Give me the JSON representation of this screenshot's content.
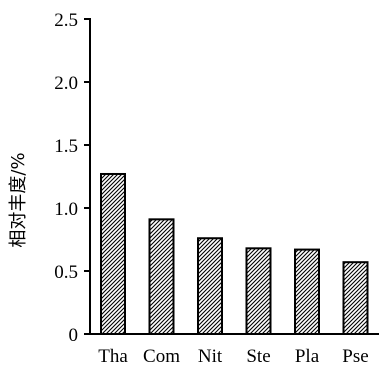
{
  "chart_data": {
    "type": "bar",
    "categories": [
      "Tha",
      "Com",
      "Nit",
      "Ste",
      "Pla",
      "Pse"
    ],
    "values": [
      1.27,
      0.91,
      0.76,
      0.68,
      0.67,
      0.57
    ],
    "title": "",
    "xlabel": "",
    "ylabel": "相对丰度/%",
    "ylim": [
      0,
      2.5
    ],
    "yticks": [
      "0",
      "0.5",
      "1.0",
      "1.5",
      "2.0",
      "2.5"
    ],
    "grid": false,
    "bar_fill": "diagonal-hatch",
    "colors": {
      "bar_stroke": "#000000",
      "hatch": "#000000",
      "background": "#ffffff"
    }
  }
}
